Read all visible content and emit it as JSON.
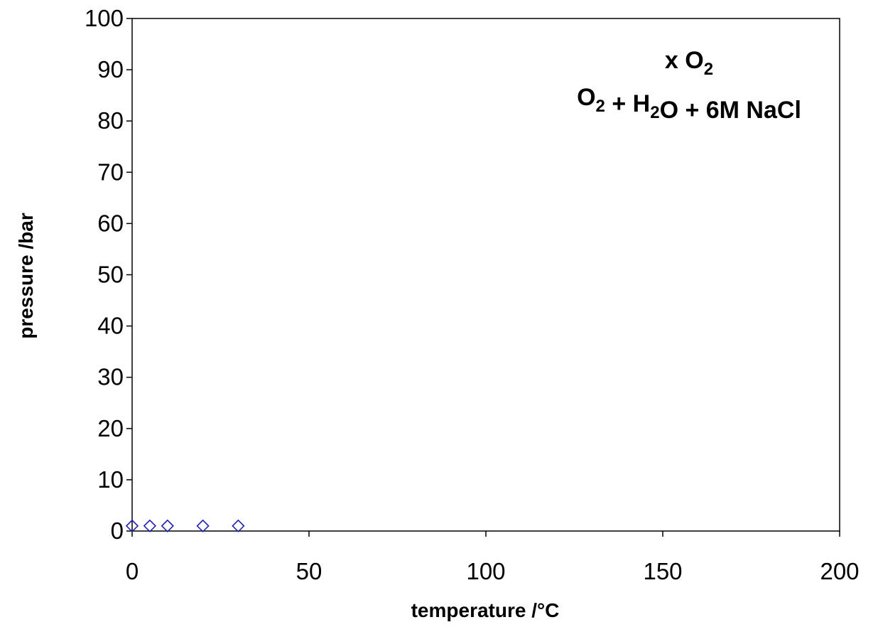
{
  "chart_data": {
    "type": "scatter",
    "title": "",
    "xlabel": "temperature /°C",
    "ylabel": "pressure /bar",
    "xlim": [
      0,
      200
    ],
    "ylim": [
      0,
      100
    ],
    "x_ticks": [
      0,
      50,
      100,
      150,
      200
    ],
    "y_ticks": [
      0,
      10,
      20,
      30,
      40,
      50,
      60,
      70,
      80,
      90,
      100
    ],
    "grid": false,
    "legend": null,
    "annotations": [
      {
        "parts": [
          {
            "text": "x O",
            "sub": false
          },
          {
            "text": "2",
            "sub": true
          }
        ]
      },
      {
        "parts": [
          {
            "text": "O",
            "sub": false
          },
          {
            "text": "2",
            "sub": true
          },
          {
            "text": " + H",
            "sub": false
          },
          {
            "text": "2",
            "sub": true
          },
          {
            "text": "O + 6M NaCl",
            "sub": false
          }
        ]
      }
    ],
    "series": [
      {
        "marker": "diamond-open",
        "color": "#1f1fb4",
        "x": [
          0,
          5,
          10,
          20,
          30
        ],
        "y": [
          1.0,
          1.0,
          1.0,
          1.0,
          1.0
        ]
      }
    ]
  }
}
